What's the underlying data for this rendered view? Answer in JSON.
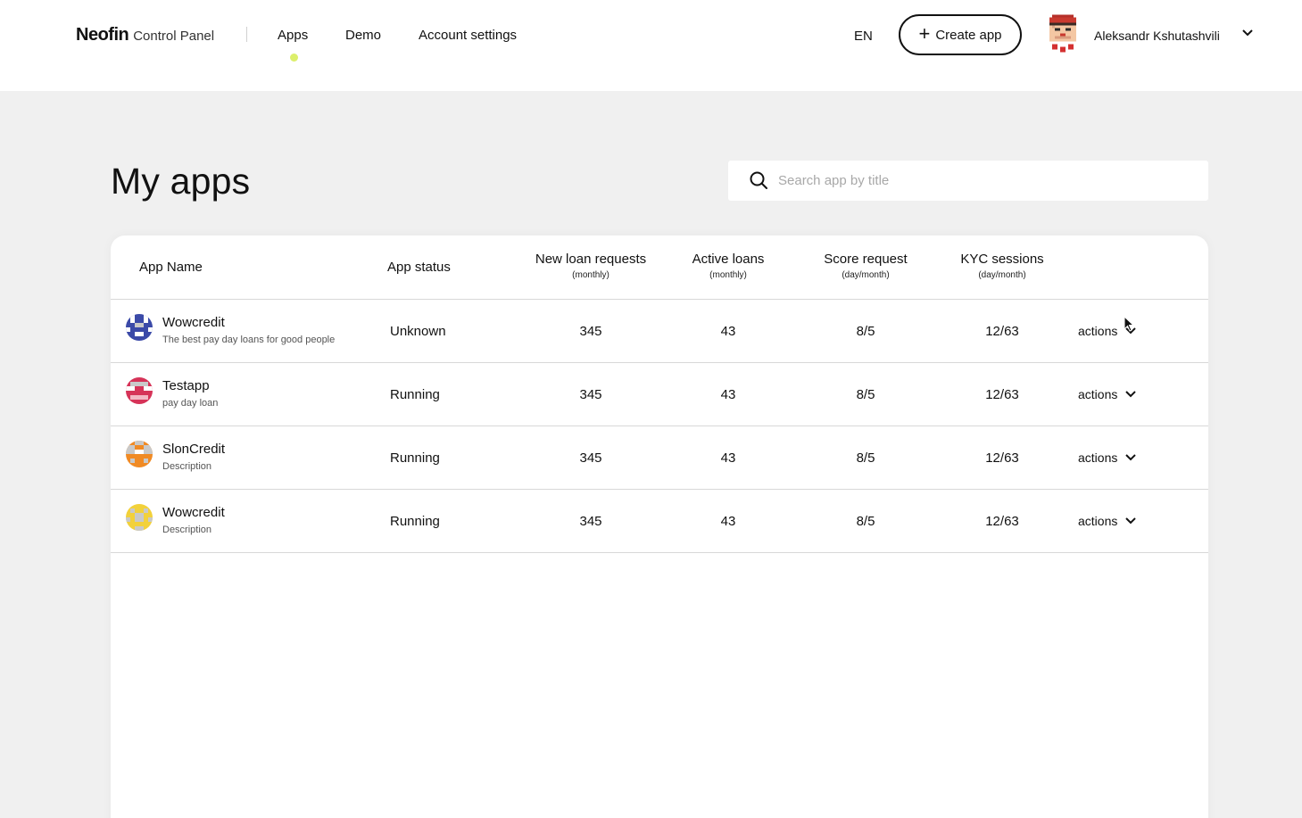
{
  "header": {
    "brand": "Neofin",
    "subtitle": "Control Panel",
    "nav": [
      {
        "label": "Apps",
        "active": true
      },
      {
        "label": "Demo"
      },
      {
        "label": "Account settings"
      }
    ],
    "language": "EN",
    "create_button": "Create app",
    "user_name": "Aleksandr Kshutashvili"
  },
  "page": {
    "title": "My apps",
    "search_placeholder": "Search app by title",
    "search_value": ""
  },
  "table": {
    "columns": [
      {
        "label": "App Name",
        "sub": ""
      },
      {
        "label": "App status",
        "sub": ""
      },
      {
        "label": "New loan requests",
        "sub": "(monthly)"
      },
      {
        "label": "Active loans",
        "sub": "(monthly)"
      },
      {
        "label": "Score request",
        "sub": "(day/month)"
      },
      {
        "label": "KYC sessions",
        "sub": "(day/month)"
      }
    ],
    "rows": [
      {
        "name": "Wowcredit",
        "description": "The best pay day loans for good people",
        "status": "Unknown",
        "new_loans": "345",
        "active_loans": "43",
        "score": "8/5",
        "kyc": "12/63",
        "actions": "actions",
        "icon_color": "#3b4aa8"
      },
      {
        "name": "Testapp",
        "description": "pay day loan",
        "status": "Running",
        "new_loans": "345",
        "active_loans": "43",
        "score": "8/5",
        "kyc": "12/63",
        "actions": "actions",
        "icon_color": "#d63358"
      },
      {
        "name": "SlonCredit",
        "description": "Description",
        "status": "Running",
        "new_loans": "345",
        "active_loans": "43",
        "score": "8/5",
        "kyc": "12/63",
        "actions": "actions",
        "icon_color": "#f08a24"
      },
      {
        "name": "Wowcredit",
        "description": "Description",
        "status": "Running",
        "new_loans": "345",
        "active_loans": "43",
        "score": "8/5",
        "kyc": "12/63",
        "actions": "actions",
        "icon_color": "#f2d13b"
      }
    ]
  },
  "colors": {
    "accent_dot": "#dcef6b",
    "background": "#f0f0f0"
  },
  "icons": [
    "search-icon",
    "plus-icon",
    "chevron-down-icon",
    "user-avatar",
    "app-identicon",
    "mouse-cursor"
  ]
}
